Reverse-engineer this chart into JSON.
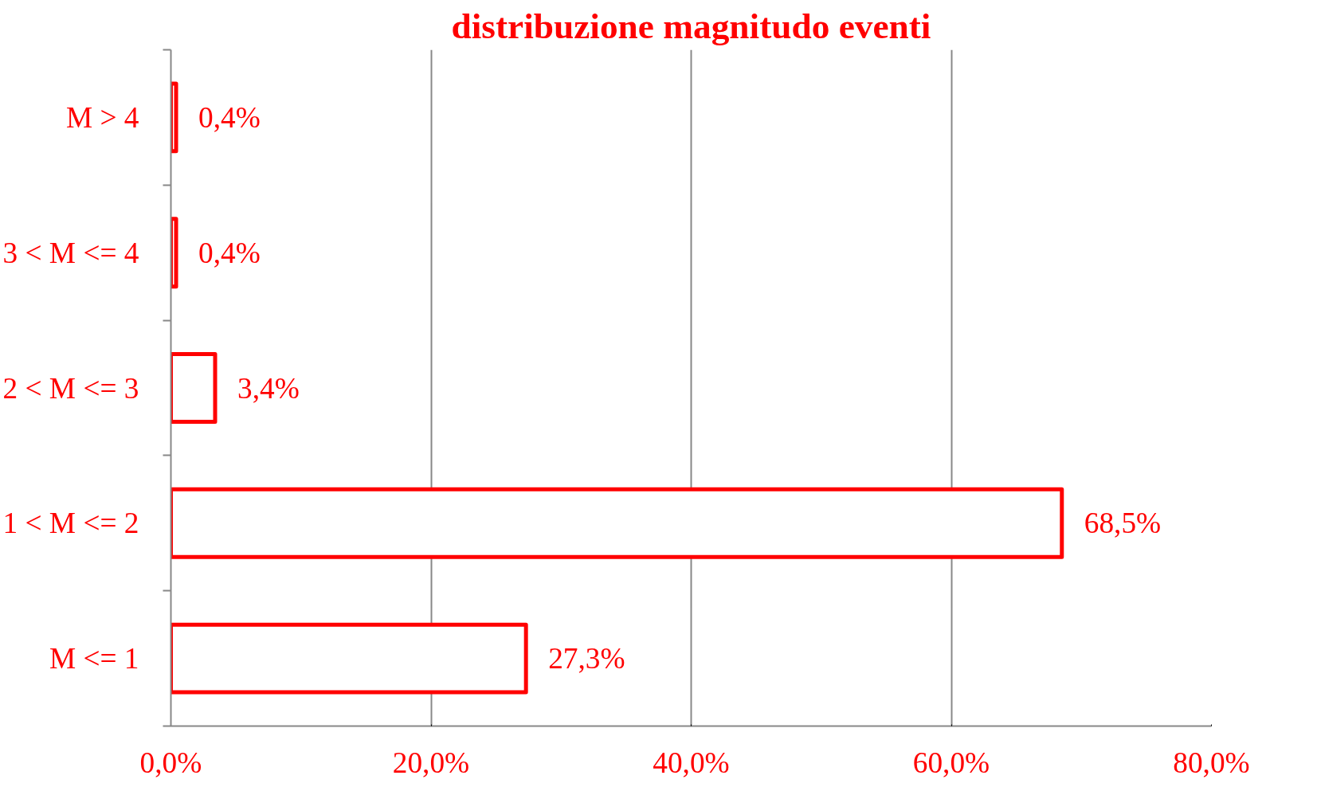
{
  "chart_data": {
    "type": "bar",
    "orientation": "horizontal",
    "title": "distribuzione magnitudo eventi",
    "categories": [
      "M > 4",
      "3 < M <= 4",
      "2 < M <= 3",
      "1 < M <= 2",
      "M <= 1"
    ],
    "values": [
      0.4,
      0.4,
      3.4,
      68.5,
      27.3
    ],
    "value_labels": [
      "0,4%",
      "0,4%",
      "3,4%",
      "68,5%",
      "27,3%"
    ],
    "color": "#ff0000",
    "xlim": [
      0,
      80
    ],
    "xticks": [
      {
        "value": 0,
        "label": "0,0%"
      },
      {
        "value": 20,
        "label": "20,0%"
      },
      {
        "value": 40,
        "label": "40,0%"
      },
      {
        "value": 60,
        "label": "60,0%"
      },
      {
        "value": 80,
        "label": "80,0%"
      }
    ],
    "grid": "x"
  }
}
